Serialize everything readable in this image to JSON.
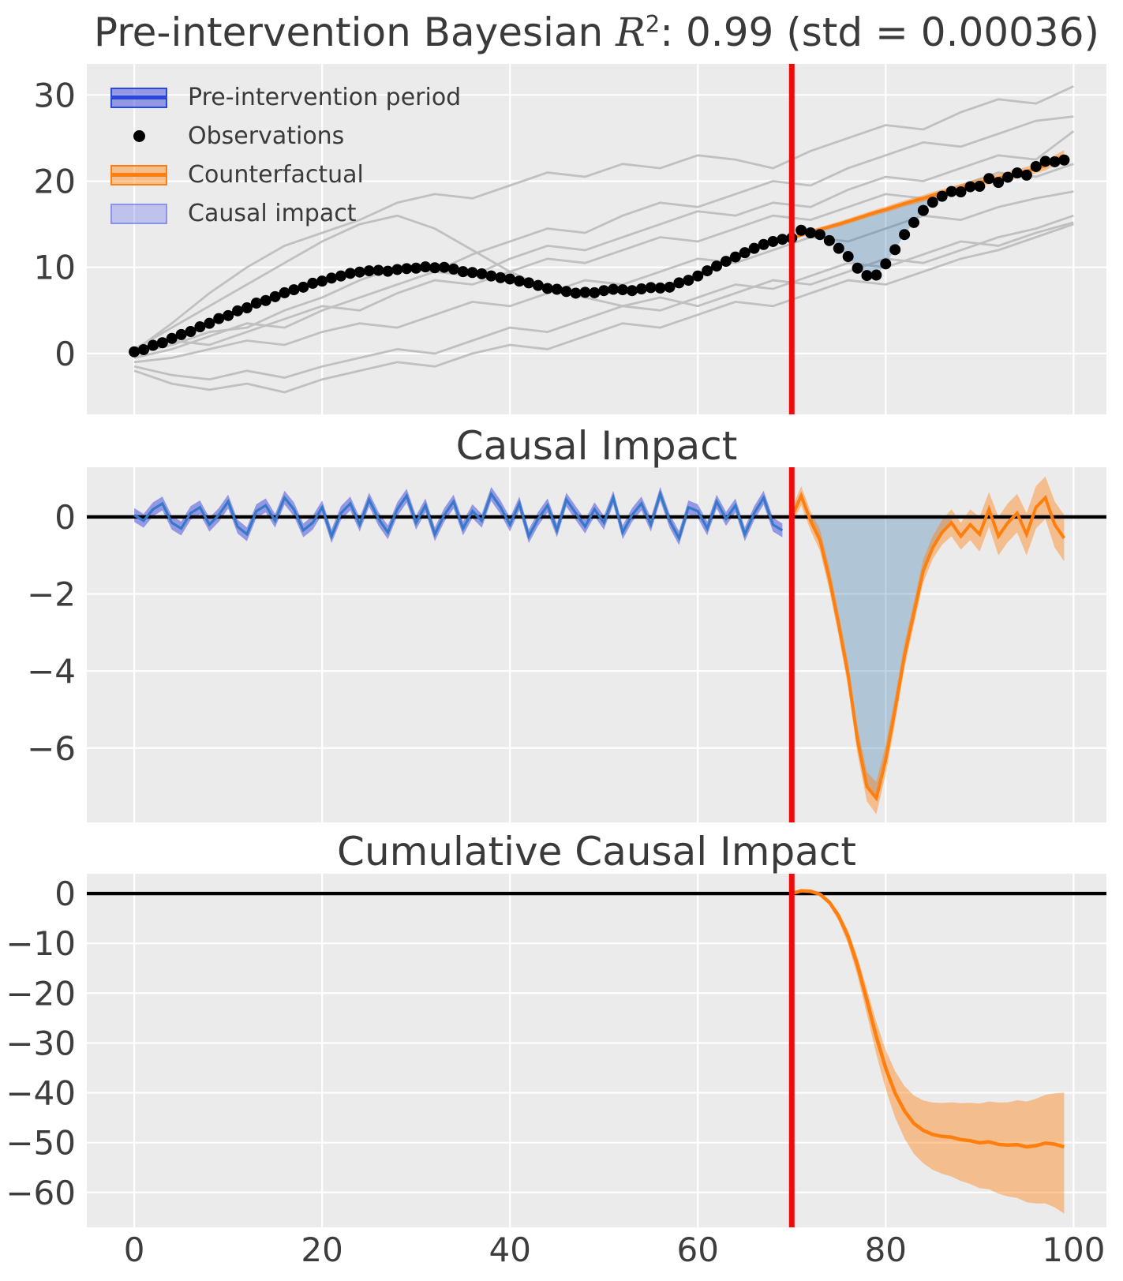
{
  "figure": {
    "colors": {
      "panel_bg": "#ebebeb",
      "grid": "#ffffff",
      "text": "#3d3d3d",
      "title_text": "#3a3a3a",
      "control_line": "#c0c0c0",
      "observation": "#000000",
      "fit_line": "#3579c8",
      "blue_band": "rgba(62,70,222,0.5)",
      "legend_blue_line": "#2b49d8",
      "counterfactual_line": "#ff7f0e",
      "counterfactual_band": "rgba(255,127,14,0.42)",
      "impact_fill": "rgba(40,110,165,0.3)",
      "legend_impact_fill": "rgba(100,108,232,0.32)",
      "legend_impact_border": "rgba(100,108,232,0.55)",
      "intervention_line": "#ef0b0b",
      "zero_line": "#000000"
    }
  },
  "chart_data": [
    {
      "type": "line",
      "title": "Pre-intervention Bayesian R²: 0.99 (std = 0.00036)",
      "title_parts": {
        "prefix": "Pre-intervention Bayesian ",
        "var": "R",
        "sup": "2",
        "suffix": ": 0.99 (std = 0.00036)"
      },
      "r2": 0.99,
      "r2_std": 0.00036,
      "legend": [
        "Pre-intervention period",
        "Observations",
        "Counterfactual",
        "Causal impact"
      ],
      "legend_position": "upper left",
      "grid": true,
      "xlim": [
        -5.05,
        103.5
      ],
      "ylim": [
        -7.06,
        33.6
      ],
      "yticks": [
        0,
        10,
        20,
        30
      ],
      "yticklabels": [
        "0",
        "10",
        "20",
        "30"
      ],
      "intervention_x": 70,
      "observations": [
        0.2,
        0.45,
        0.95,
        1.25,
        1.75,
        2.2,
        2.55,
        3.1,
        3.5,
        4.05,
        4.4,
        4.95,
        5.3,
        5.85,
        6.15,
        6.6,
        7.05,
        7.4,
        7.7,
        8.15,
        8.4,
        8.75,
        9.0,
        9.3,
        9.45,
        9.6,
        9.65,
        9.55,
        9.75,
        9.85,
        9.9,
        10.05,
        9.95,
        10.0,
        9.8,
        9.5,
        9.4,
        9.25,
        9.0,
        8.8,
        8.65,
        8.4,
        8.2,
        7.9,
        7.55,
        7.45,
        7.2,
        7.0,
        7.1,
        7.05,
        7.3,
        7.45,
        7.4,
        7.3,
        7.5,
        7.65,
        7.6,
        7.7,
        8.2,
        8.5,
        9.0,
        9.6,
        10.15,
        10.7,
        11.2,
        11.7,
        12.2,
        12.65,
        13.0,
        13.25,
        13.4,
        14.3,
        14.0,
        13.8,
        13.1,
        12.2,
        11.25,
        9.9,
        9.05,
        9.1,
        10.4,
        12.05,
        13.8,
        15.2,
        16.6,
        17.55,
        18.25,
        18.8,
        18.75,
        19.35,
        19.4,
        20.3,
        19.85,
        20.45,
        20.95,
        20.7,
        21.7,
        22.3,
        22.25,
        22.45
      ],
      "pre_fit_band_halfwidth": 0.3,
      "counterfactual": {
        "x_start": 70,
        "mean": [
          13.4,
          13.75,
          14.1,
          14.4,
          14.7,
          15.0,
          15.35,
          15.7,
          16.05,
          16.4,
          16.7,
          17.05,
          17.4,
          17.7,
          18.0,
          18.35,
          18.65,
          18.95,
          19.25,
          19.55,
          19.85,
          20.1,
          20.35,
          20.6,
          20.85,
          21.15,
          21.45,
          21.8,
          22.45,
          23.0
        ],
        "band_halfwidth": [
          0.2,
          0.22,
          0.24,
          0.26,
          0.28,
          0.3,
          0.3,
          0.32,
          0.32,
          0.34,
          0.34,
          0.36,
          0.36,
          0.38,
          0.38,
          0.4,
          0.4,
          0.42,
          0.42,
          0.44,
          0.46,
          0.46,
          0.48,
          0.5,
          0.5,
          0.52,
          0.54,
          0.56,
          0.58,
          0.6
        ]
      },
      "controls": {
        "x_step": 4,
        "series": [
          [
            0.3,
            3.5,
            7.0,
            10.0,
            12.5,
            14.0,
            15.5,
            17.5,
            18.5,
            18.0,
            19.5,
            21.0,
            20.5,
            22.0,
            21.5,
            23.0,
            22.5,
            21.5,
            23.5,
            25.0,
            26.5,
            26.0,
            28.0,
            29.5,
            29.0,
            31.0
          ],
          [
            0.0,
            1.0,
            2.5,
            3.0,
            5.0,
            6.5,
            8.5,
            10.0,
            9.5,
            11.5,
            13.0,
            14.5,
            14.0,
            16.0,
            17.5,
            17.0,
            18.5,
            20.0,
            19.5,
            21.5,
            23.0,
            24.5,
            24.0,
            25.5,
            27.0,
            27.5
          ],
          [
            -0.5,
            0.5,
            2.0,
            3.5,
            3.0,
            5.0,
            6.5,
            8.0,
            9.5,
            9.0,
            11.0,
            12.5,
            12.0,
            13.5,
            15.0,
            16.5,
            16.0,
            17.5,
            17.0,
            19.0,
            20.5,
            20.0,
            21.5,
            23.0,
            22.5,
            25.8
          ],
          [
            0.2,
            1.5,
            1.0,
            2.5,
            4.0,
            5.5,
            5.0,
            7.0,
            8.5,
            8.0,
            9.5,
            11.0,
            10.5,
            12.0,
            13.5,
            13.0,
            14.5,
            16.0,
            15.5,
            17.0,
            18.5,
            18.0,
            19.5,
            21.0,
            20.5,
            22.0
          ],
          [
            -1.0,
            -0.5,
            0.5,
            1.5,
            1.0,
            2.5,
            3.5,
            3.0,
            4.5,
            6.0,
            5.5,
            7.0,
            8.5,
            8.0,
            9.5,
            11.0,
            10.5,
            12.0,
            13.5,
            13.0,
            14.5,
            16.0,
            15.5,
            17.0,
            18.0,
            18.8
          ],
          [
            -1.5,
            -2.5,
            -3.0,
            -2.0,
            -2.8,
            -1.5,
            -0.5,
            0.5,
            0.0,
            1.5,
            3.0,
            2.5,
            4.0,
            5.5,
            5.0,
            6.5,
            8.0,
            7.5,
            9.0,
            10.5,
            10.0,
            11.5,
            13.0,
            12.5,
            14.0,
            15.2
          ],
          [
            -2.0,
            -3.5,
            -4.2,
            -3.5,
            -4.5,
            -3.0,
            -2.0,
            -1.0,
            -1.5,
            0.0,
            1.0,
            0.5,
            2.0,
            3.5,
            3.0,
            4.5,
            6.0,
            5.5,
            7.0,
            8.5,
            8.0,
            9.5,
            11.0,
            12.0,
            13.5,
            15.0
          ],
          [
            0.5,
            3.0,
            5.5,
            8.0,
            10.5,
            13.0,
            15.0,
            16.0,
            14.5,
            12.0,
            9.5,
            7.5,
            6.5,
            5.5,
            6.5,
            5.5,
            7.0,
            8.5,
            8.0,
            9.5,
            11.0,
            10.5,
            12.0,
            13.5,
            14.5,
            16.0
          ]
        ]
      }
    },
    {
      "type": "line",
      "title": "Causal Impact",
      "grid": true,
      "xlim": [
        -5.05,
        103.5
      ],
      "ylim": [
        -7.93,
        1.29
      ],
      "yticks": [
        0,
        -2,
        -4,
        -6
      ],
      "yticklabels": [
        "0",
        "−2",
        "−4",
        "−6"
      ],
      "zero_line": true,
      "intervention_x": 70,
      "pre_impact": {
        "x_start": 0,
        "band_halfwidth": 0.18,
        "mean": [
          0.05,
          -0.1,
          0.2,
          0.35,
          -0.15,
          -0.3,
          0.1,
          0.25,
          -0.2,
          0.05,
          0.4,
          -0.25,
          -0.45,
          0.15,
          0.3,
          -0.1,
          0.5,
          0.2,
          -0.35,
          -0.15,
          0.25,
          -0.5,
          0.1,
          0.35,
          -0.2,
          0.45,
          -0.05,
          -0.4,
          0.2,
          0.55,
          -0.15,
          0.3,
          -0.45,
          0.05,
          0.4,
          -0.3,
          0.15,
          -0.1,
          0.6,
          0.25,
          -0.2,
          0.35,
          -0.5,
          -0.05,
          0.3,
          -0.35,
          0.45,
          0.1,
          -0.25,
          0.2,
          -0.15,
          0.5,
          -0.4,
          0.05,
          0.35,
          -0.2,
          0.6,
          -0.1,
          -0.55,
          0.25,
          0.15,
          -0.3,
          0.4,
          -0.05,
          0.3,
          -0.45,
          0.1,
          0.5,
          -0.2,
          -0.35
        ]
      },
      "post_impact": {
        "x_start": 70,
        "mean": [
          0.0,
          0.55,
          -0.1,
          -0.6,
          -1.6,
          -2.8,
          -4.1,
          -5.8,
          -7.0,
          -7.3,
          -6.3,
          -5.0,
          -3.6,
          -2.5,
          -1.4,
          -0.8,
          -0.4,
          -0.15,
          -0.5,
          -0.2,
          -0.45,
          0.2,
          -0.5,
          -0.15,
          0.1,
          -0.45,
          0.25,
          0.5,
          -0.2,
          -0.55
        ],
        "band_halfwidth": [
          0.2,
          0.25,
          0.25,
          0.28,
          0.3,
          0.3,
          0.32,
          0.35,
          0.38,
          0.42,
          0.38,
          0.35,
          0.32,
          0.3,
          0.3,
          0.3,
          0.32,
          0.35,
          0.35,
          0.4,
          0.45,
          0.45,
          0.5,
          0.5,
          0.5,
          0.55,
          0.55,
          0.55,
          0.6,
          0.6
        ]
      }
    },
    {
      "type": "line",
      "title": "Cumulative Causal Impact",
      "grid": true,
      "xlim": [
        -5.05,
        103.5
      ],
      "ylim": [
        -67.0,
        3.97
      ],
      "yticks": [
        0,
        -10,
        -20,
        -30,
        -40,
        -50,
        -60
      ],
      "yticklabels": [
        "0",
        "−10",
        "−20",
        "−30",
        "−40",
        "−50",
        "−60"
      ],
      "xticks": [
        0,
        20,
        40,
        60,
        80,
        100
      ],
      "xticklabels": [
        "0",
        "20",
        "40",
        "60",
        "80",
        "100"
      ],
      "zero_line": true,
      "intervention_x": 70,
      "cumulative": {
        "x_start": 70,
        "mean": [
          0,
          0.55,
          0.45,
          -0.15,
          -1.75,
          -4.55,
          -8.65,
          -14.45,
          -21.45,
          -28.75,
          -35.05,
          -40.05,
          -43.65,
          -46.15,
          -47.55,
          -48.35,
          -48.75,
          -48.9,
          -49.4,
          -49.6,
          -50.05,
          -49.85,
          -50.35,
          -50.5,
          -50.4,
          -50.85,
          -50.6,
          -50.1,
          -50.3,
          -50.85
        ],
        "upper": [
          0,
          0.65,
          0.65,
          0.15,
          -1.25,
          -3.75,
          -7.45,
          -12.75,
          -19.15,
          -25.75,
          -31.35,
          -35.65,
          -38.65,
          -40.55,
          -41.55,
          -41.95,
          -42.05,
          -41.9,
          -42.1,
          -42.0,
          -42.15,
          -41.75,
          -41.95,
          -41.9,
          -41.5,
          -41.75,
          -41.2,
          -40.4,
          -40.1,
          -39.95
        ],
        "lower": [
          0,
          0.45,
          0.25,
          -0.5,
          -2.35,
          -5.55,
          -10.15,
          -16.55,
          -24.25,
          -32.25,
          -39.25,
          -44.95,
          -49.15,
          -52.25,
          -54.15,
          -55.45,
          -56.25,
          -56.8,
          -57.7,
          -58.3,
          -59.15,
          -59.35,
          -60.25,
          -60.8,
          -61.1,
          -61.95,
          -62.2,
          -62.2,
          -63.0,
          -64.25
        ]
      }
    }
  ]
}
